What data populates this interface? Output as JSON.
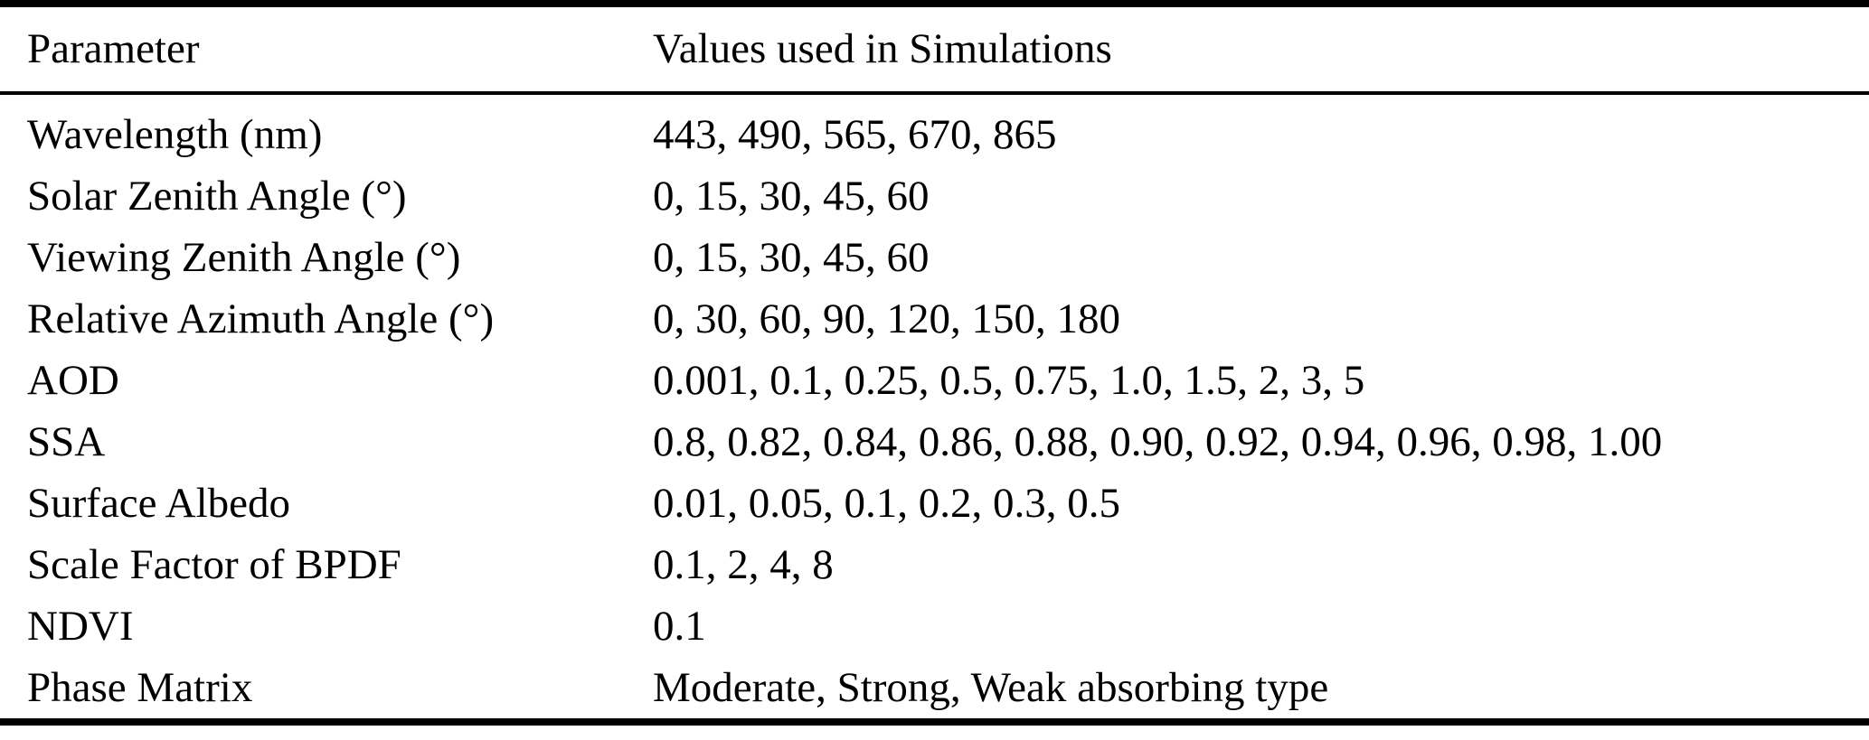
{
  "table": {
    "columns": {
      "parameter": "Parameter",
      "values": "Values used in Simulations"
    },
    "rows": [
      {
        "parameter": "Wavelength (nm)",
        "values": "443, 490, 565, 670, 865"
      },
      {
        "parameter": "Solar Zenith Angle (°)",
        "values": "0, 15, 30, 45, 60"
      },
      {
        "parameter": "Viewing Zenith Angle (°)",
        "values": "0, 15, 30, 45, 60"
      },
      {
        "parameter": "Relative Azimuth Angle (°)",
        "values": "0, 30, 60, 90, 120, 150, 180"
      },
      {
        "parameter": "AOD",
        "values": "0.001, 0.1, 0.25, 0.5, 0.75, 1.0, 1.5, 2, 3, 5"
      },
      {
        "parameter": "SSA",
        "values": "0.8, 0.82, 0.84, 0.86, 0.88, 0.90, 0.92, 0.94, 0.96, 0.98, 1.00"
      },
      {
        "parameter": "Surface Albedo",
        "values": "0.01, 0.05, 0.1, 0.2, 0.3, 0.5"
      },
      {
        "parameter": "Scale Factor of BPDF",
        "values": "0.1, 2, 4, 8"
      },
      {
        "parameter": "NDVI",
        "values": "0.1"
      },
      {
        "parameter": "Phase Matrix",
        "values": "Moderate, Strong, Weak absorbing type"
      }
    ],
    "colors": {
      "text": "#000000",
      "background": "#ffffff",
      "rule": "#000000"
    }
  }
}
